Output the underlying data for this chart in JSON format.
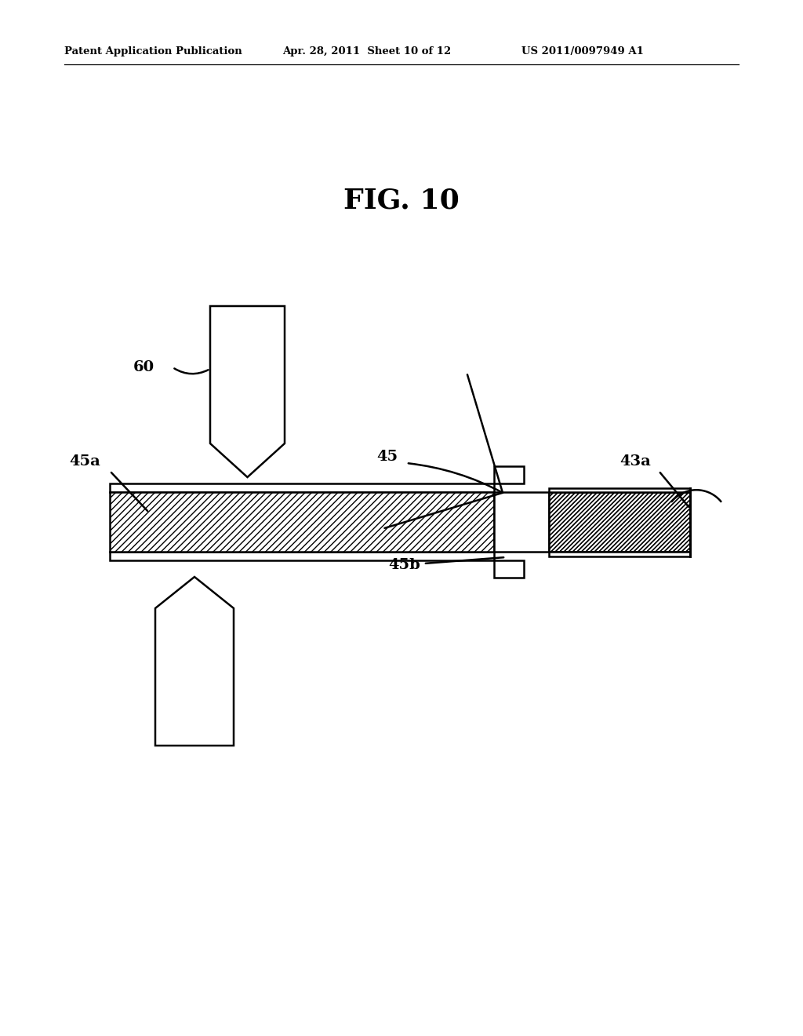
{
  "header_left": "Patent Application Publication",
  "header_middle": "Apr. 28, 2011  Sheet 10 of 12",
  "header_right": "US 2011/0097949 A1",
  "fig_title": "FIG. 10",
  "bg_color": "#ffffff",
  "line_color": "#000000",
  "label_60": "60",
  "label_45a": "45a",
  "label_45": "45",
  "label_43a": "43a",
  "label_45b": "45b",
  "fig_width": 10.24,
  "fig_height": 13.2
}
